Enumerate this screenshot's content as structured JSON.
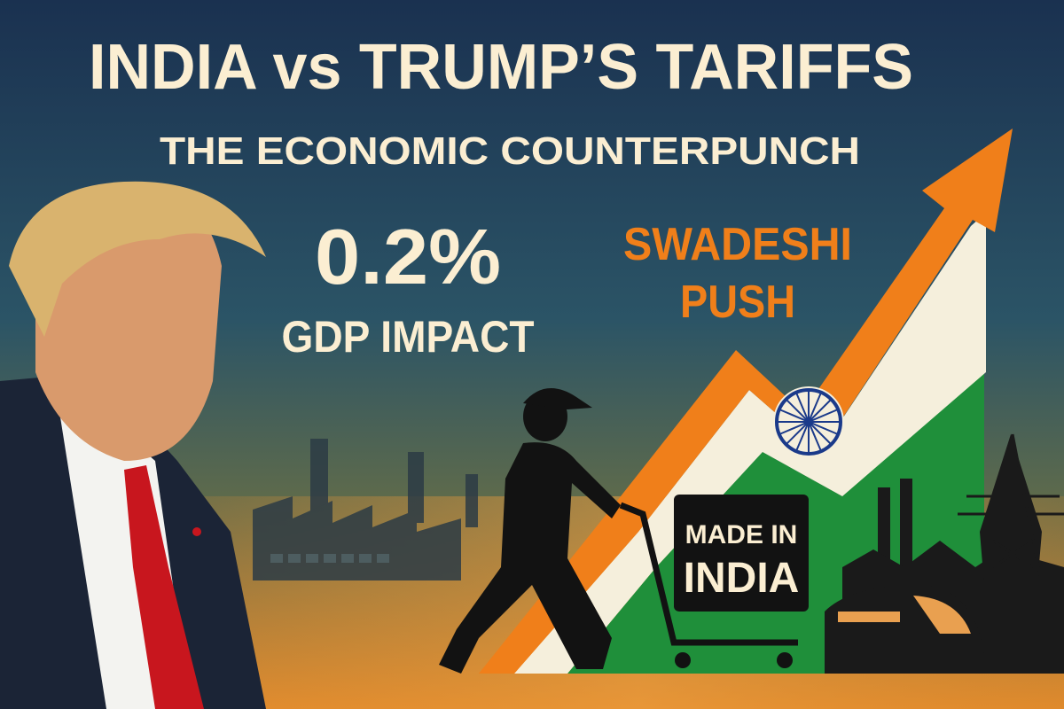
{
  "header": {
    "title": "INDIA vs TRUMP’S TARIFFS",
    "subtitle": "THE ECONOMIC COUNTERPUNCH"
  },
  "stat": {
    "value": "0.2%",
    "label": "GDP IMPACT"
  },
  "slogan": {
    "lines": [
      "SWADESHI",
      "PUSH"
    ]
  },
  "sign": {
    "lines": [
      "MADE IN",
      "INDIA"
    ]
  }
}
